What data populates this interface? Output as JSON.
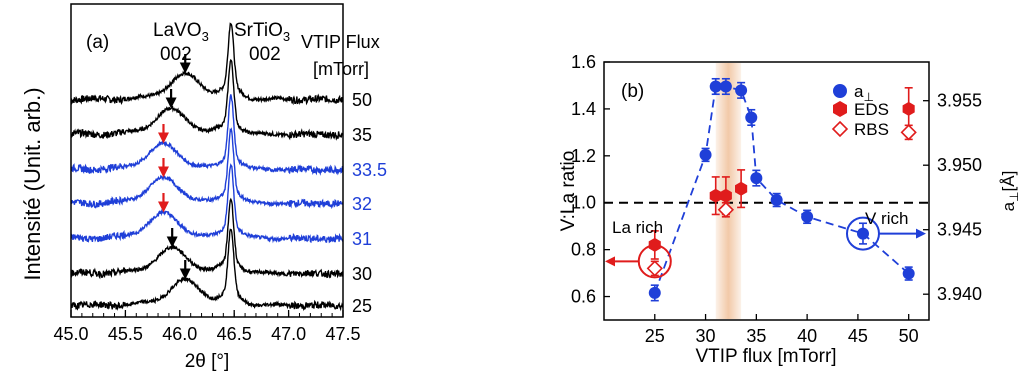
{
  "colors": {
    "black": "#000000",
    "blue": "#1f3fd8",
    "red": "#e01c1c",
    "band": "#f2c9a8"
  },
  "chart_data": [
    {
      "type": "line",
      "panel_label": "(a)",
      "xlabel": "2θ [°]",
      "ylabel": "Intensité (Unit. arb.)",
      "xlim": [
        45.0,
        47.5
      ],
      "xticks": [
        "45.0",
        "45.5",
        "46.0",
        "46.5",
        "47.0",
        "47.5"
      ],
      "annotations": {
        "lavo3": "LaVO",
        "lavo3_sub": "3",
        "lavo3_002": "002",
        "srtio3": "SrTiO",
        "srtio3_sub": "3",
        "srtio3_002": "002",
        "flux_title": "VTIP Flux",
        "flux_unit": "[mTorr]"
      },
      "series": [
        {
          "name": "50",
          "color": "black",
          "film_peak": 46.05,
          "arrow": "black"
        },
        {
          "name": "35",
          "color": "black",
          "film_peak": 45.92,
          "arrow": "black"
        },
        {
          "name": "33.5",
          "color": "blue",
          "film_peak": 45.85,
          "arrow": "red"
        },
        {
          "name": "32",
          "color": "blue",
          "film_peak": 45.85,
          "arrow": "red"
        },
        {
          "name": "31",
          "color": "blue",
          "film_peak": 45.85,
          "arrow": "red"
        },
        {
          "name": "30",
          "color": "black",
          "film_peak": 45.93,
          "arrow": "black"
        },
        {
          "name": "25",
          "color": "black",
          "film_peak": 46.05,
          "arrow": "black"
        }
      ]
    },
    {
      "type": "scatter",
      "panel_label": "(b)",
      "xlabel": "VTIP flux [mTorr]",
      "ylabel": "V:La ratio",
      "y2label": "a",
      "y2label_sub": "⊥",
      "y2label_unit": "[Å]",
      "xlim": [
        20,
        52
      ],
      "ylim": [
        0.5,
        1.6
      ],
      "y2lim": [
        3.938,
        3.958
      ],
      "xticks": [
        "25",
        "30",
        "35",
        "40",
        "45",
        "50"
      ],
      "yticks": [
        "0.6",
        "0.8",
        "1.0",
        "1.2",
        "1.4",
        "1.6"
      ],
      "y2ticks": [
        "3.940",
        "3.945",
        "3.950",
        "3.955"
      ],
      "reference_line": 1.0,
      "band": [
        31,
        33.5
      ],
      "legend": {
        "placement": "top-right",
        "a_perp": "a",
        "a_perp_sub": "⊥",
        "eds": "EDS",
        "rbs": "RBS"
      },
      "region_labels": {
        "la_rich": "La rich",
        "v_rich": "V rich"
      },
      "a_perp": {
        "x": [
          25,
          30,
          31,
          32,
          33.5,
          34.5,
          35,
          37,
          40,
          45.5,
          50
        ],
        "y": [
          3.9401,
          3.9508,
          3.9561,
          3.9561,
          3.9558,
          3.9537,
          3.949,
          3.9473,
          3.946,
          3.9447,
          3.9416
        ],
        "err": [
          0.0006,
          0.0005,
          0.0006,
          0.0006,
          0.0006,
          0.0006,
          0.0006,
          0.0005,
          0.0005,
          0.0008,
          0.0005
        ]
      },
      "eds": {
        "x": [
          25,
          31,
          32,
          33.5,
          50
        ],
        "y": [
          0.82,
          1.03,
          1.03,
          1.06,
          1.4
        ],
        "err": [
          0.06,
          0.08,
          0.08,
          0.08,
          0.09
        ]
      },
      "rbs": {
        "x": [
          25,
          32,
          50
        ],
        "y": [
          0.72,
          0.97,
          1.3
        ],
        "err": [
          0.03,
          0.03,
          0.03
        ]
      }
    }
  ]
}
